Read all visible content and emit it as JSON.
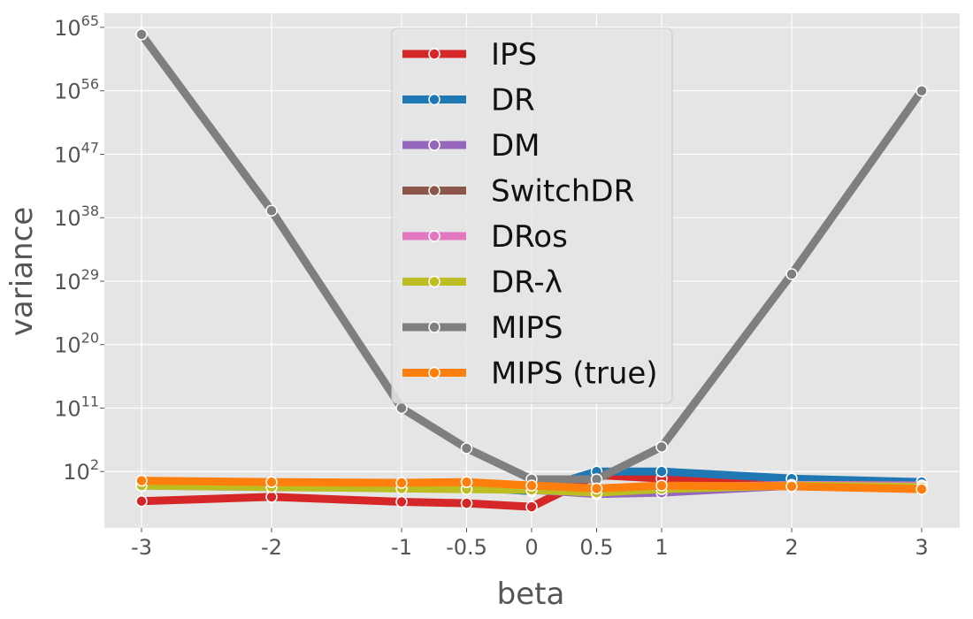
{
  "chart_data": {
    "type": "line",
    "title": "",
    "xlabel": "beta",
    "ylabel": "variance",
    "x": [
      -3,
      -2,
      -1,
      -0.5,
      0,
      0.5,
      1,
      2,
      3
    ],
    "x_tick_labels": [
      "-3",
      "-2",
      "-1",
      "-0.5",
      "0",
      "0.5",
      "1",
      "2",
      "3"
    ],
    "y_scale": "log",
    "ylim_log10": [
      -6,
      67
    ],
    "y_ticks": [
      {
        "exp": 2,
        "base": "10",
        "sup": "2"
      },
      {
        "exp": 11,
        "base": "10",
        "sup": "11"
      },
      {
        "exp": 20,
        "base": "10",
        "sup": "20"
      },
      {
        "exp": 29,
        "base": "10",
        "sup": "29"
      },
      {
        "exp": 38,
        "base": "10",
        "sup": "38"
      },
      {
        "exp": 47,
        "base": "10",
        "sup": "47"
      },
      {
        "exp": 56,
        "base": "10",
        "sup": "56"
      },
      {
        "exp": 65,
        "base": "10",
        "sup": "65"
      }
    ],
    "grid": true,
    "legend_position": "top-center",
    "series": [
      {
        "name": "IPS",
        "color": "#d62728",
        "log10_values": [
          -2.2,
          -1.6,
          -2.3,
          -2.5,
          -3.0,
          1.5,
          1.0,
          0.2,
          -0.5
        ]
      },
      {
        "name": "DR",
        "color": "#1f77b4",
        "log10_values": [
          0.3,
          0.0,
          -0.3,
          -0.2,
          -0.8,
          2.0,
          2.0,
          1.0,
          0.5
        ]
      },
      {
        "name": "DM",
        "color": "#9467bd",
        "log10_values": [
          0.0,
          -0.2,
          -0.3,
          -0.4,
          -0.6,
          -1.2,
          -1.0,
          0.0,
          0.0
        ]
      },
      {
        "name": "SwitchDR",
        "color": "#8c564b",
        "log10_values": [
          0.1,
          -0.1,
          -0.2,
          -0.3,
          -0.5,
          -0.5,
          -0.2,
          0.1,
          0.0
        ]
      },
      {
        "name": "DRos",
        "color": "#e377c2",
        "log10_values": [
          0.1,
          -0.1,
          -0.2,
          -0.3,
          -0.5,
          -0.6,
          -0.3,
          0.1,
          0.0
        ]
      },
      {
        "name": "DR-λ",
        "color": "#bcbd22",
        "log10_values": [
          0.0,
          -0.2,
          -0.4,
          -0.5,
          -0.6,
          -1.0,
          -0.5,
          0.0,
          -0.2
        ]
      },
      {
        "name": "MIPS",
        "color": "#7f7f7f",
        "log10_values": [
          64.0,
          39.0,
          11.0,
          5.3,
          0.9,
          0.9,
          5.5,
          30.0,
          56.0
        ]
      },
      {
        "name": "MIPS (true)",
        "color": "#ff7f0e",
        "log10_values": [
          0.7,
          0.5,
          0.4,
          0.5,
          0.0,
          -0.4,
          0.0,
          -0.1,
          -0.5
        ]
      }
    ]
  }
}
